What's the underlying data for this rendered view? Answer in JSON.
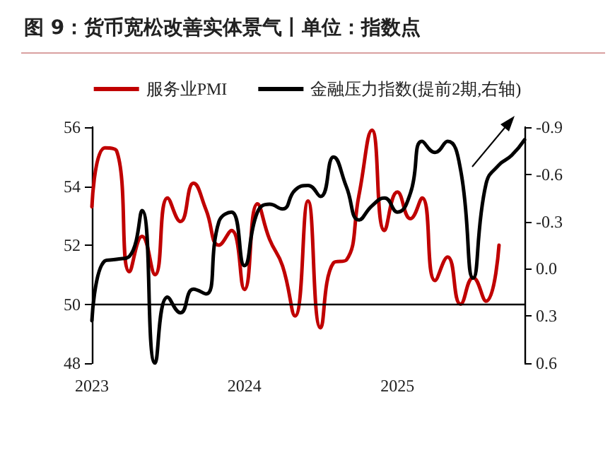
{
  "chart_data": {
    "type": "line",
    "title": "图 9：货币宽松改善实体景气丨单位：指数点",
    "x": [
      "2023-01",
      "2023-02",
      "2023-03",
      "2023-04",
      "2023-05",
      "2023-06",
      "2023-07",
      "2023-08",
      "2023-09",
      "2023-10",
      "2023-11",
      "2023-12",
      "2024-01",
      "2024-02",
      "2024-03",
      "2024-04",
      "2024-05",
      "2024-06",
      "2024-07",
      "2024-08",
      "2024-09",
      "2024-10",
      "2024-11",
      "2024-12",
      "2025-01",
      "2025-02",
      "2025-03",
      "2025-04",
      "2025-05",
      "2025-06",
      "2025-07",
      "2025-08",
      "2025-09",
      "2025-10",
      "2025-11"
    ],
    "series": [
      {
        "name": "服务业PMI",
        "color": "#c00000",
        "values": [
          53.3,
          55.3,
          55.2,
          51.1,
          52.3,
          51.0,
          53.6,
          52.8,
          54.1,
          53.2,
          52.0,
          52.5,
          50.5,
          53.4,
          52.2,
          51.3,
          49.6,
          53.5,
          49.2,
          51.4,
          51.5,
          53.7,
          55.9,
          52.5,
          53.8,
          52.9,
          53.6,
          50.8,
          51.6,
          50.0,
          50.9,
          50.1,
          52.0,
          null,
          null
        ]
      },
      {
        "name": "金融压力指数(提前2期,右轴)",
        "color": "#000000",
        "axis": "y2",
        "values": [
          0.33,
          -0.05,
          -0.06,
          -0.08,
          -0.37,
          0.6,
          0.18,
          0.28,
          0.13,
          0.16,
          -0.3,
          -0.36,
          -0.02,
          -0.36,
          -0.41,
          -0.38,
          -0.5,
          -0.53,
          -0.46,
          -0.71,
          -0.52,
          -0.31,
          -0.4,
          -0.45,
          -0.36,
          -0.48,
          -0.81,
          -0.74,
          -0.81,
          -0.63,
          0.06,
          -0.54,
          -0.66,
          -0.72,
          -0.82
        ]
      }
    ],
    "xlim": [
      "2023-01",
      "2025-11"
    ],
    "xticks": [
      "2023",
      "2024",
      "2025"
    ],
    "ylim": [
      48,
      56
    ],
    "yticks": [
      48,
      50,
      52,
      54,
      56
    ],
    "y2lim": [
      0.6,
      -0.9
    ],
    "y2ticks": [
      -0.9,
      -0.6,
      -0.3,
      {
        "value": 0,
        "label": "0.0"
      },
      0.3,
      0.6
    ],
    "ref_lines": [
      {
        "axis": "y",
        "value": 50,
        "color": "#000000"
      }
    ],
    "grid": false,
    "legend": "top",
    "marker": "none",
    "line_style": "solid"
  }
}
